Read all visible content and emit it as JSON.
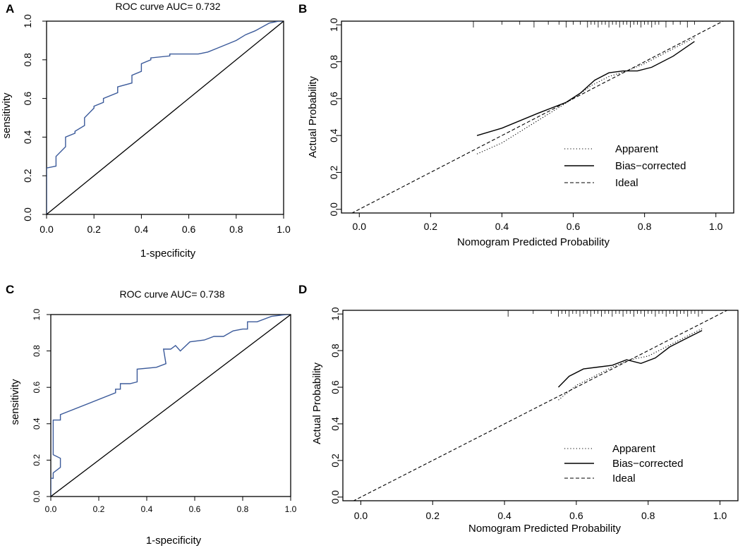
{
  "colors": {
    "roc_line": "#3b5a9a",
    "axis": "#000000",
    "background": "#ffffff"
  },
  "chart_data": [
    {
      "panel": "A",
      "type": "line",
      "title": "ROC curve AUC= 0.732",
      "xlabel": "1-specificity",
      "ylabel": "sensitivity",
      "xlim": [
        0,
        1
      ],
      "ylim": [
        0,
        1
      ],
      "xticks": [
        "0.0",
        "0.2",
        "0.4",
        "0.6",
        "0.8",
        "1.0"
      ],
      "yticks": [
        "0.0",
        "0.2",
        "0.4",
        "0.6",
        "0.8",
        "1.0"
      ],
      "series": [
        {
          "name": "ROC",
          "style": "roc",
          "x": [
            0,
            0,
            0.04,
            0.04,
            0.08,
            0.08,
            0.12,
            0.12,
            0.16,
            0.16,
            0.2,
            0.2,
            0.24,
            0.24,
            0.3,
            0.3,
            0.36,
            0.36,
            0.4,
            0.4,
            0.44,
            0.44,
            0.52,
            0.52,
            0.6,
            0.64,
            0.68,
            0.72,
            0.76,
            0.8,
            0.84,
            0.88,
            0.94,
            0.98,
            1.0
          ],
          "y": [
            0,
            0.24,
            0.25,
            0.3,
            0.35,
            0.4,
            0.42,
            0.43,
            0.46,
            0.5,
            0.55,
            0.56,
            0.58,
            0.6,
            0.63,
            0.66,
            0.68,
            0.72,
            0.74,
            0.78,
            0.8,
            0.81,
            0.82,
            0.83,
            0.83,
            0.83,
            0.84,
            0.86,
            0.88,
            0.9,
            0.93,
            0.95,
            0.99,
            1.0,
            1.0
          ]
        },
        {
          "name": "Reference",
          "style": "diag",
          "x": [
            0,
            1
          ],
          "y": [
            0,
            1
          ]
        }
      ]
    },
    {
      "panel": "B",
      "type": "line",
      "title": "",
      "xlabel": "Nomogram Predicted Probability",
      "ylabel": "Actual Probability",
      "xlim": [
        -0.05,
        1.05
      ],
      "ylim": [
        -0.02,
        1.02
      ],
      "xticks": [
        "0.0",
        "0.2",
        "0.4",
        "0.6",
        "0.8",
        "1.0"
      ],
      "yticks": [
        "0.0",
        "0.2",
        "0.4",
        "0.6",
        "0.8",
        "1.0"
      ],
      "legend": [
        "Apparent",
        "Bias−corrected",
        "Ideal"
      ],
      "legend_position": "bottom-right",
      "rug": [
        0.32,
        0.4,
        0.45,
        0.49,
        0.53,
        0.56,
        0.58,
        0.6,
        0.62,
        0.64,
        0.65,
        0.66,
        0.67,
        0.68,
        0.69,
        0.7,
        0.71,
        0.72,
        0.73,
        0.74,
        0.75,
        0.76,
        0.77,
        0.78,
        0.79,
        0.8,
        0.81,
        0.82,
        0.83,
        0.84,
        0.86,
        0.88,
        0.9,
        0.92,
        0.94
      ],
      "series": [
        {
          "name": "Apparent",
          "style": "dotted",
          "x": [
            0.33,
            0.4,
            0.5,
            0.6,
            0.65,
            0.7,
            0.75,
            0.8,
            0.85,
            0.94
          ],
          "y": [
            0.3,
            0.36,
            0.48,
            0.6,
            0.67,
            0.72,
            0.75,
            0.79,
            0.84,
            0.93
          ]
        },
        {
          "name": "Bias−corrected",
          "style": "solid",
          "x": [
            0.33,
            0.4,
            0.5,
            0.58,
            0.62,
            0.66,
            0.7,
            0.74,
            0.78,
            0.82,
            0.88,
            0.94
          ],
          "y": [
            0.4,
            0.44,
            0.52,
            0.58,
            0.63,
            0.7,
            0.74,
            0.75,
            0.75,
            0.77,
            0.83,
            0.91
          ]
        },
        {
          "name": "Ideal",
          "style": "dashed",
          "x": [
            -0.05,
            1.05
          ],
          "y": [
            -0.05,
            1.05
          ]
        }
      ]
    },
    {
      "panel": "C",
      "type": "line",
      "title": "ROC curve AUC= 0.738",
      "xlabel": "1-specificity",
      "ylabel": "sensitivity",
      "xlim": [
        0,
        1
      ],
      "ylim": [
        0,
        1
      ],
      "xticks": [
        "0.0",
        "0.2",
        "0.4",
        "0.6",
        "0.8",
        "1.0"
      ],
      "yticks": [
        "0.0",
        "0.2",
        "0.4",
        "0.6",
        "0.8",
        "1.0"
      ],
      "series": [
        {
          "name": "ROC",
          "style": "roc",
          "x": [
            0,
            0,
            0.01,
            0.01,
            0.04,
            0.04,
            0.01,
            0.01,
            0.04,
            0.04,
            0.27,
            0.27,
            0.29,
            0.29,
            0.33,
            0.36,
            0.36,
            0.44,
            0.48,
            0.47,
            0.5,
            0.52,
            0.54,
            0.58,
            0.64,
            0.68,
            0.72,
            0.76,
            0.8,
            0.82,
            0.82,
            0.86,
            0.92,
            0.98,
            1.0
          ],
          "y": [
            0,
            0.1,
            0.1,
            0.13,
            0.16,
            0.21,
            0.23,
            0.42,
            0.42,
            0.45,
            0.57,
            0.59,
            0.59,
            0.62,
            0.62,
            0.63,
            0.7,
            0.71,
            0.73,
            0.81,
            0.81,
            0.83,
            0.8,
            0.85,
            0.86,
            0.88,
            0.88,
            0.91,
            0.92,
            0.92,
            0.96,
            0.96,
            0.99,
            1.0,
            1.0
          ]
        },
        {
          "name": "Reference",
          "style": "diag",
          "x": [
            0,
            1
          ],
          "y": [
            0,
            1
          ]
        }
      ]
    },
    {
      "panel": "D",
      "type": "line",
      "title": "",
      "xlabel": "Nomogram Predicted Probability",
      "ylabel": "Actual Probability",
      "xlim": [
        -0.05,
        1.05
      ],
      "ylim": [
        -0.02,
        1.02
      ],
      "xticks": [
        "0.0",
        "0.2",
        "0.4",
        "0.6",
        "0.8",
        "1.0"
      ],
      "yticks": [
        "0.0",
        "0.2",
        "0.4",
        "0.6",
        "0.8",
        "1.0"
      ],
      "legend": [
        "Apparent",
        "Bias−corrected",
        "Ideal"
      ],
      "legend_position": "bottom-right",
      "rug": [
        0.41,
        0.48,
        0.53,
        0.55,
        0.56,
        0.57,
        0.58,
        0.59,
        0.6,
        0.61,
        0.62,
        0.63,
        0.64,
        0.65,
        0.66,
        0.67,
        0.68,
        0.69,
        0.7,
        0.71,
        0.72,
        0.73,
        0.74,
        0.75,
        0.76,
        0.77,
        0.78,
        0.79,
        0.8,
        0.81,
        0.82,
        0.83,
        0.84,
        0.85,
        0.86,
        0.87,
        0.88,
        0.89,
        0.9,
        0.91,
        0.92,
        0.93,
        0.94,
        0.95
      ],
      "series": [
        {
          "name": "Apparent",
          "style": "dotted",
          "x": [
            0.55,
            0.6,
            0.65,
            0.7,
            0.75,
            0.8,
            0.85,
            0.9,
            0.95
          ],
          "y": [
            0.53,
            0.61,
            0.66,
            0.71,
            0.75,
            0.77,
            0.82,
            0.87,
            0.92
          ]
        },
        {
          "name": "Bias−corrected",
          "style": "solid",
          "x": [
            0.55,
            0.58,
            0.62,
            0.66,
            0.7,
            0.74,
            0.76,
            0.78,
            0.82,
            0.86,
            0.9,
            0.95
          ],
          "y": [
            0.6,
            0.66,
            0.7,
            0.71,
            0.72,
            0.75,
            0.74,
            0.73,
            0.76,
            0.82,
            0.86,
            0.91
          ]
        },
        {
          "name": "Ideal",
          "style": "dashed",
          "x": [
            -0.05,
            1.05
          ],
          "y": [
            -0.05,
            1.05
          ]
        }
      ]
    }
  ]
}
